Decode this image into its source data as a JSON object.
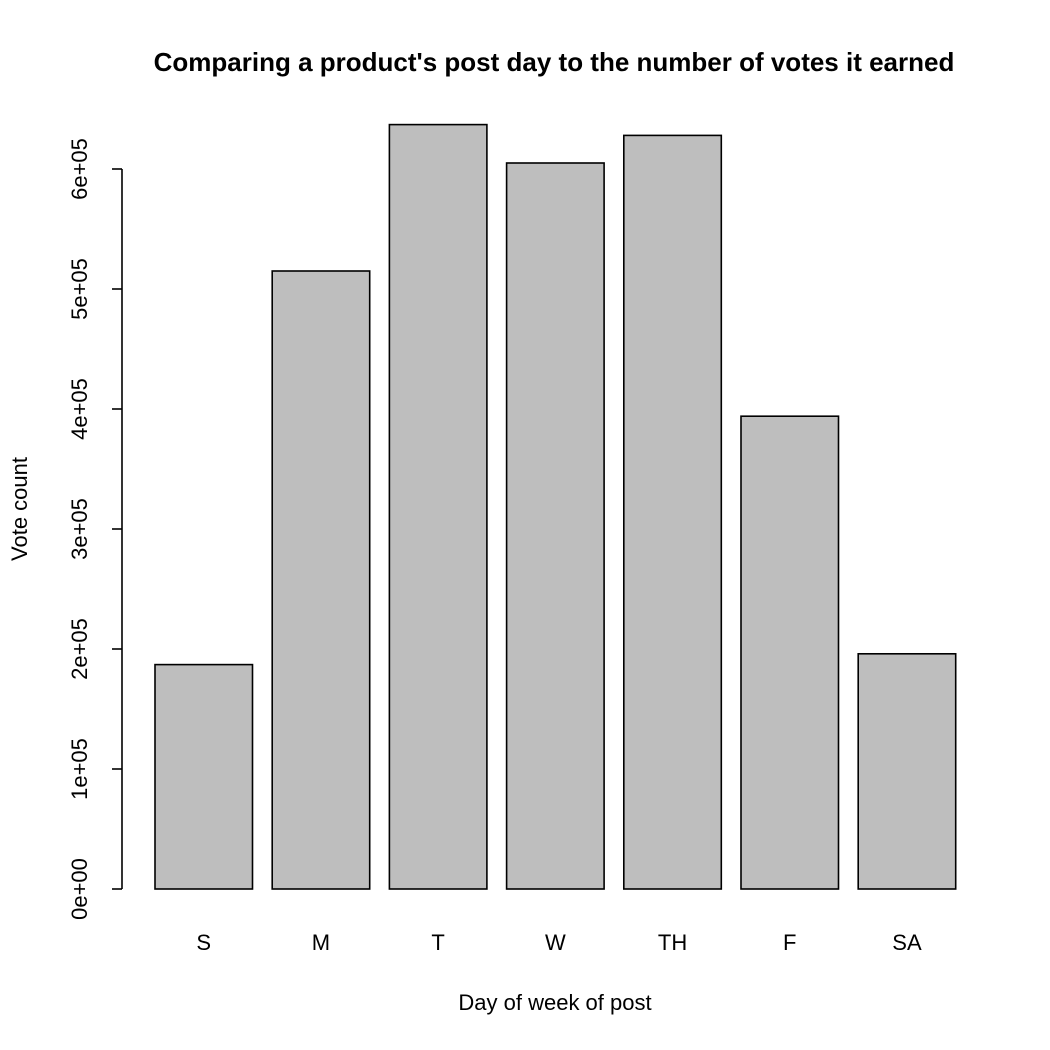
{
  "chart_data": {
    "type": "bar",
    "title": "Comparing a product's post day to the number of votes it earned",
    "xlabel": "Day of week of post",
    "ylabel": "Vote count",
    "categories": [
      "S",
      "M",
      "T",
      "W",
      "TH",
      "F",
      "SA"
    ],
    "values": [
      187000,
      515000,
      637000,
      605000,
      628000,
      394000,
      196000
    ],
    "ylim": [
      0,
      640000
    ],
    "yticks": [
      0,
      100000,
      200000,
      300000,
      400000,
      500000,
      600000
    ],
    "ytick_labels": [
      "0e+00",
      "1e+05",
      "2e+05",
      "3e+05",
      "4e+05",
      "5e+05",
      "6e+05"
    ],
    "bar_color": "#bebebe",
    "grid": false,
    "legend": "none"
  }
}
